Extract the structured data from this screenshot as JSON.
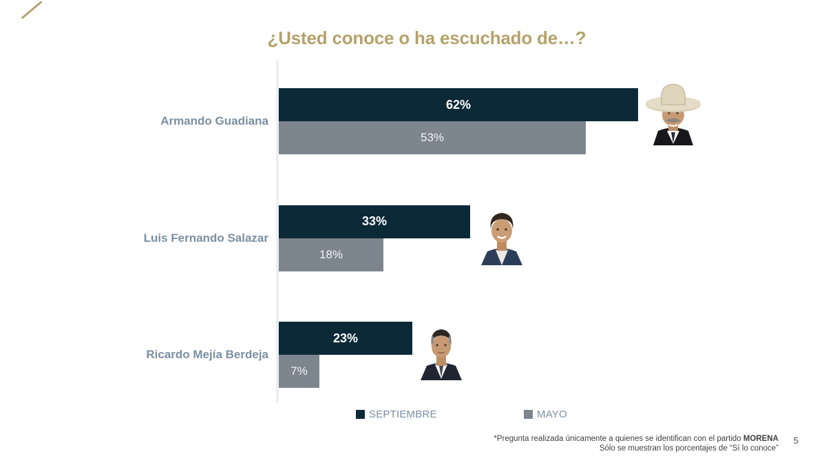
{
  "chart_data": {
    "type": "bar",
    "orientation": "horizontal",
    "title": "¿Usted conoce o ha escuchado de…?",
    "categories": [
      "Armando Guadiana",
      "Luis Fernando Salazar",
      "Ricardo Mejía Berdeja"
    ],
    "series": [
      {
        "name": "SEPTIEMBRE",
        "color": "#0c2937",
        "values": [
          62,
          33,
          23
        ]
      },
      {
        "name": "MAYO",
        "color": "#7d858e",
        "values": [
          53,
          18,
          7
        ]
      }
    ],
    "value_suffix": "%",
    "xlim": [
      0,
      100
    ],
    "grid": false,
    "legend_position": "bottom"
  },
  "footnote": {
    "line1_prefix": "*Pregunta realizada únicamente a quienes se identifican con el partido ",
    "line1_bold": "MORENA",
    "line2": "Sólo se muestran los porcentajes de “Sí lo conoce”",
    "page_number": "5"
  },
  "colors": {
    "title_gold": "#b5a26b",
    "category_label": "#7a8fa2",
    "septiembre_bar": "#0c2937",
    "mayo_bar": "#7d858e",
    "axis_line": "#eceef1"
  }
}
